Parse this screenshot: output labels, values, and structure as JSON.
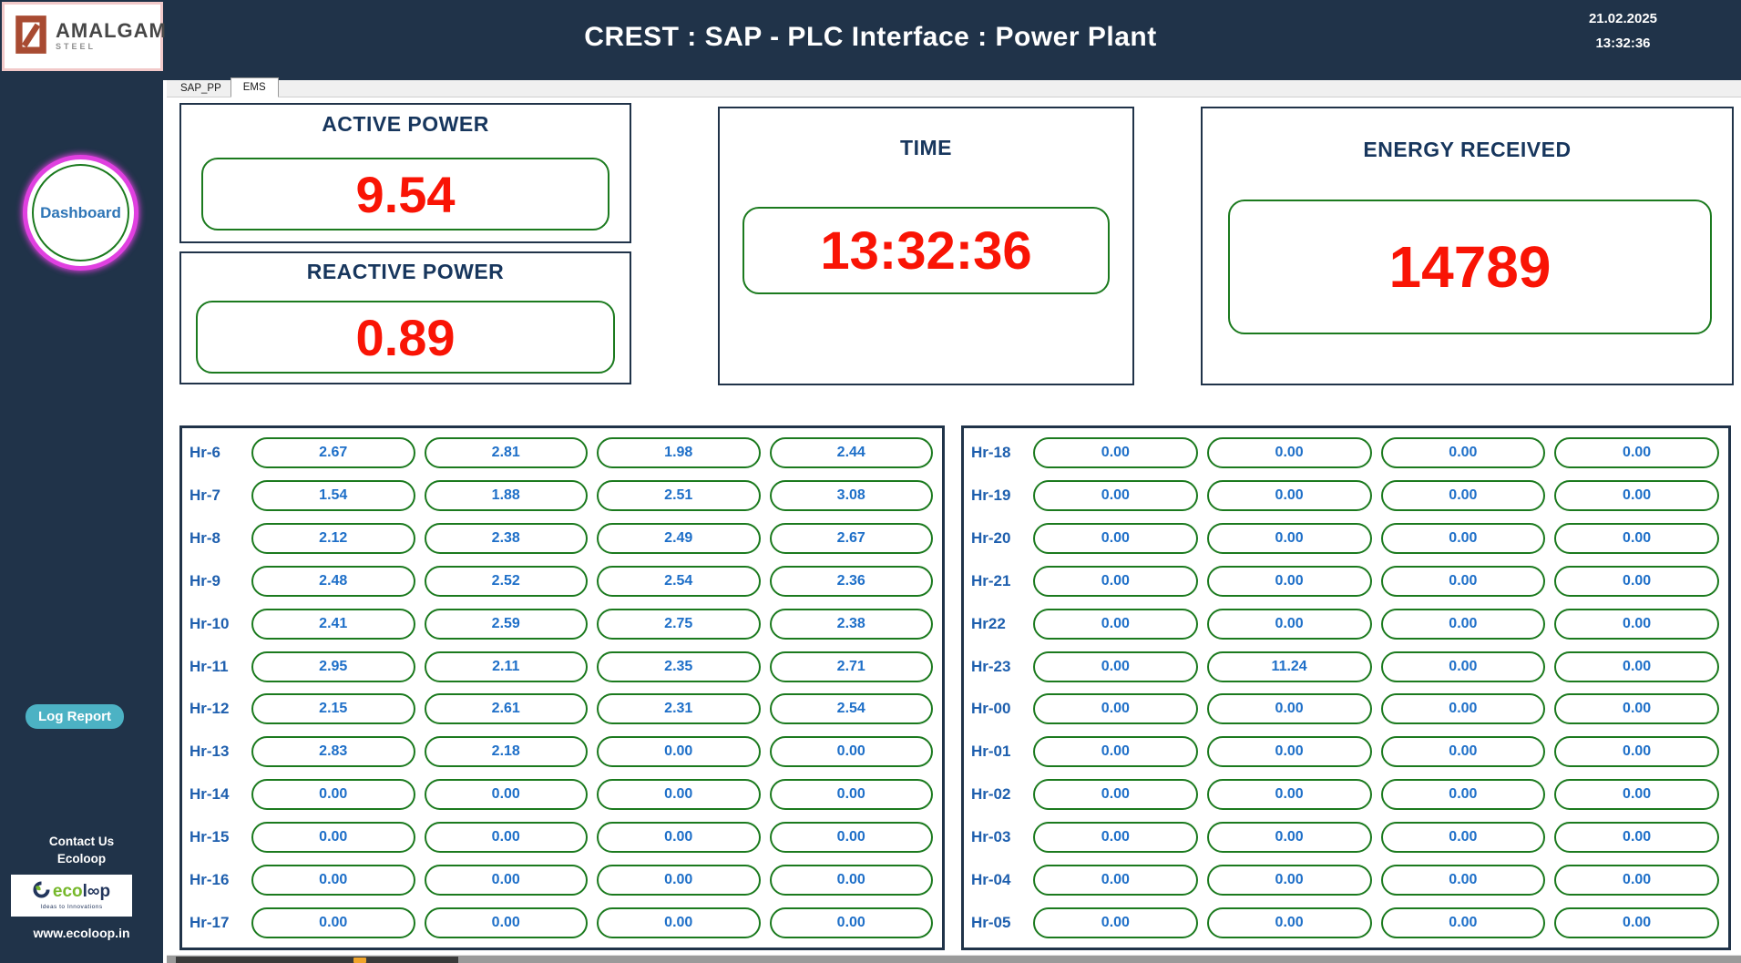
{
  "header": {
    "title": "CREST : SAP - PLC Interface : Power Plant",
    "date": "21.02.2025",
    "time": "13:32:36"
  },
  "brand": {
    "name": "AMALGAM",
    "subtitle": "STEEL"
  },
  "sidebar": {
    "dashboard": "Dashboard",
    "log_report": "Log Report",
    "contact_us": "Contact Us",
    "company": "Ecoloop",
    "website": "www.ecoloop.in",
    "eco_logo": {
      "eco": "eco",
      "loop": "l∞p",
      "tagline": "Ideas to Innovations"
    }
  },
  "tabs": {
    "sap_pp": "SAP_PP",
    "ems": "EMS"
  },
  "panels": {
    "active_power": {
      "title": "ACTIVE POWER",
      "value": "9.54"
    },
    "reactive_power": {
      "title": "REACTIVE POWER",
      "value": "0.89"
    },
    "time": {
      "title": "TIME",
      "value": "13:32:36"
    },
    "energy_received": {
      "title": "ENERGY RECEIVED",
      "value": "14789"
    }
  },
  "tables": {
    "left": [
      {
        "label": "Hr-6",
        "values": [
          "2.67",
          "2.81",
          "1.98",
          "2.44"
        ]
      },
      {
        "label": "Hr-7",
        "values": [
          "1.54",
          "1.88",
          "2.51",
          "3.08"
        ]
      },
      {
        "label": "Hr-8",
        "values": [
          "2.12",
          "2.38",
          "2.49",
          "2.67"
        ]
      },
      {
        "label": "Hr-9",
        "values": [
          "2.48",
          "2.52",
          "2.54",
          "2.36"
        ]
      },
      {
        "label": "Hr-10",
        "values": [
          "2.41",
          "2.59",
          "2.75",
          "2.38"
        ]
      },
      {
        "label": "Hr-11",
        "values": [
          "2.95",
          "2.11",
          "2.35",
          "2.71"
        ]
      },
      {
        "label": "Hr-12",
        "values": [
          "2.15",
          "2.61",
          "2.31",
          "2.54"
        ]
      },
      {
        "label": "Hr-13",
        "values": [
          "2.83",
          "2.18",
          "0.00",
          "0.00"
        ]
      },
      {
        "label": "Hr-14",
        "values": [
          "0.00",
          "0.00",
          "0.00",
          "0.00"
        ]
      },
      {
        "label": "Hr-15",
        "values": [
          "0.00",
          "0.00",
          "0.00",
          "0.00"
        ]
      },
      {
        "label": "Hr-16",
        "values": [
          "0.00",
          "0.00",
          "0.00",
          "0.00"
        ]
      },
      {
        "label": "Hr-17",
        "values": [
          "0.00",
          "0.00",
          "0.00",
          "0.00"
        ]
      }
    ],
    "right": [
      {
        "label": "Hr-18",
        "values": [
          "0.00",
          "0.00",
          "0.00",
          "0.00"
        ]
      },
      {
        "label": "Hr-19",
        "values": [
          "0.00",
          "0.00",
          "0.00",
          "0.00"
        ]
      },
      {
        "label": "Hr-20",
        "values": [
          "0.00",
          "0.00",
          "0.00",
          "0.00"
        ]
      },
      {
        "label": "Hr-21",
        "values": [
          "0.00",
          "0.00",
          "0.00",
          "0.00"
        ]
      },
      {
        "label": "Hr22",
        "values": [
          "0.00",
          "0.00",
          "0.00",
          "0.00"
        ]
      },
      {
        "label": "Hr-23",
        "values": [
          "0.00",
          "11.24",
          "0.00",
          "0.00"
        ]
      },
      {
        "label": "Hr-00",
        "values": [
          "0.00",
          "0.00",
          "0.00",
          "0.00"
        ]
      },
      {
        "label": "Hr-01",
        "values": [
          "0.00",
          "0.00",
          "0.00",
          "0.00"
        ]
      },
      {
        "label": "Hr-02",
        "values": [
          "0.00",
          "0.00",
          "0.00",
          "0.00"
        ]
      },
      {
        "label": "Hr-03",
        "values": [
          "0.00",
          "0.00",
          "0.00",
          "0.00"
        ]
      },
      {
        "label": "Hr-04",
        "values": [
          "0.00",
          "0.00",
          "0.00",
          "0.00"
        ]
      },
      {
        "label": "Hr-05",
        "values": [
          "0.00",
          "0.00",
          "0.00",
          "0.00"
        ]
      }
    ]
  },
  "colors": {
    "navy": "#203349",
    "red": "#f91405",
    "green": "#1b7a1e",
    "blue": "#1e6fc8",
    "label-blue": "#1e5fae",
    "teal": "#4cb2c4",
    "magenta": "#e040e0",
    "rust": "#a84b32",
    "pink": "#f2c9c9",
    "eco-green": "#76b82a"
  }
}
